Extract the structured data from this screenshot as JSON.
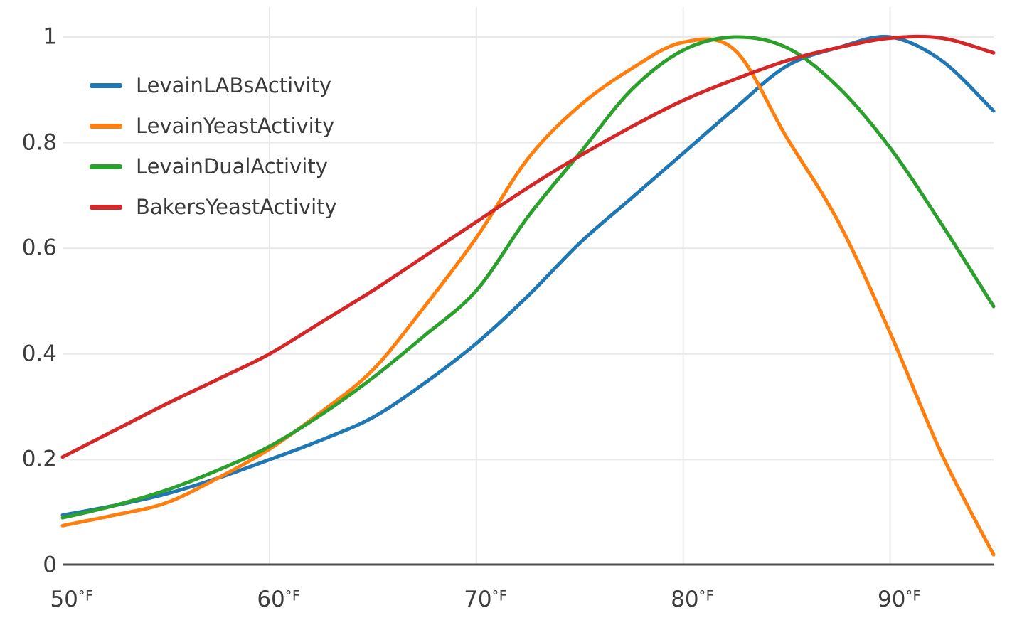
{
  "chart_data": {
    "type": "line",
    "title": "",
    "xlabel": "",
    "ylabel": "",
    "x_unit": "°F",
    "xlim": [
      50,
      95
    ],
    "ylim": [
      0,
      1.06
    ],
    "grid": true,
    "legend_position": "top-left",
    "x": [
      50,
      52.5,
      55,
      57.5,
      60,
      62.5,
      65,
      67.5,
      70,
      72.5,
      75,
      77.5,
      80,
      82.5,
      85,
      87.5,
      90,
      92.5,
      95
    ],
    "series": [
      {
        "name": "LevainLABsActivity",
        "color": "#1f77b4",
        "values": [
          0.095,
          0.113,
          0.135,
          0.165,
          0.2,
          0.237,
          0.28,
          0.345,
          0.42,
          0.51,
          0.61,
          0.695,
          0.78,
          0.865,
          0.945,
          0.98,
          1.0,
          0.955,
          0.86
        ]
      },
      {
        "name": "LevainYeastActivity",
        "color": "#ff7f0e",
        "values": [
          0.075,
          0.095,
          0.118,
          0.165,
          0.22,
          0.29,
          0.37,
          0.49,
          0.62,
          0.77,
          0.87,
          0.94,
          0.99,
          0.975,
          0.81,
          0.65,
          0.44,
          0.21,
          0.02
        ]
      },
      {
        "name": "LevainDualActivity",
        "color": "#2ca02c",
        "values": [
          0.09,
          0.113,
          0.142,
          0.18,
          0.225,
          0.285,
          0.355,
          0.435,
          0.52,
          0.66,
          0.78,
          0.9,
          0.975,
          1.0,
          0.98,
          0.905,
          0.79,
          0.645,
          0.49
        ]
      },
      {
        "name": "BakersYeastActivity",
        "color": "#d62728",
        "values": [
          0.205,
          0.255,
          0.305,
          0.352,
          0.4,
          0.46,
          0.52,
          0.585,
          0.65,
          0.715,
          0.775,
          0.83,
          0.88,
          0.92,
          0.955,
          0.98,
          0.998,
          0.998,
          0.97
        ]
      }
    ],
    "x_ticks": [
      {
        "value": 50,
        "label": "50°F"
      },
      {
        "value": 60,
        "label": "60°F"
      },
      {
        "value": 70,
        "label": "70°F"
      },
      {
        "value": 80,
        "label": "80°F"
      },
      {
        "value": 90,
        "label": "90°F"
      }
    ],
    "y_ticks": [
      {
        "value": 0,
        "label": "0"
      },
      {
        "value": 0.2,
        "label": "0.2"
      },
      {
        "value": 0.4,
        "label": "0.4"
      },
      {
        "value": 0.6,
        "label": "0.6"
      },
      {
        "value": 0.8,
        "label": "0.8"
      },
      {
        "value": 1,
        "label": "1"
      }
    ],
    "style": {
      "background": "#ffffff",
      "grid_color": "#e9e9e9",
      "axis_color": "#4f4f4f",
      "tick_label_color": "#3d3d3d",
      "legend_text_color": "#3a3a3a",
      "line_width": 5
    }
  }
}
